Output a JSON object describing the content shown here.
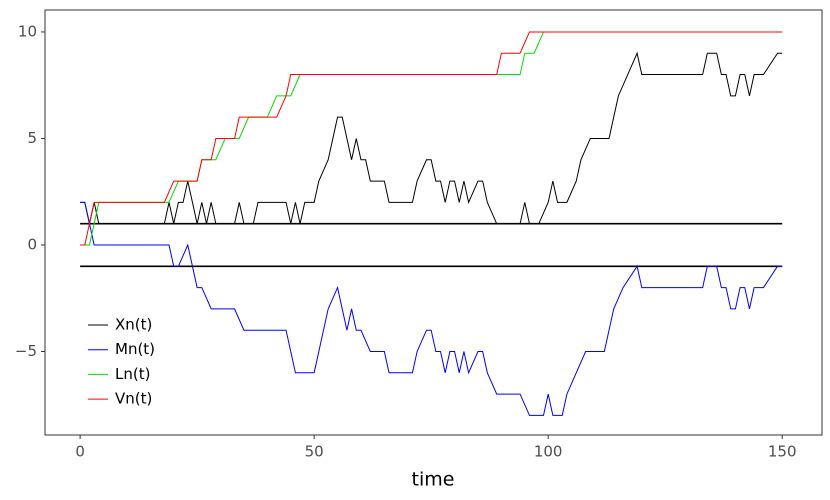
{
  "chart_data": {
    "type": "line",
    "xlabel": "time",
    "xlim": [
      -7.5,
      158.5
    ],
    "ylim": [
      -8.92,
      11.03
    ],
    "xticks": [
      0,
      50,
      100,
      150
    ],
    "yticks": [
      {
        "value": -5,
        "label": "−5"
      },
      0,
      5,
      10
    ],
    "grid": false,
    "legend": "bottom-left",
    "hlines": [
      1,
      -1
    ],
    "hline_color": "#000000",
    "series": [
      {
        "name": "Xn(t)",
        "color": "#000000",
        "x": [
          0,
          1,
          2,
          3,
          4,
          18,
          19,
          20,
          21,
          22,
          23,
          24,
          25,
          26,
          27,
          28,
          29,
          33,
          34,
          35,
          37,
          38,
          44,
          45,
          46,
          47,
          48,
          50,
          51,
          53,
          54,
          55,
          56,
          57,
          58,
          59,
          60,
          61,
          62,
          65,
          66,
          71,
          72,
          74,
          75,
          76,
          77,
          78,
          79,
          80,
          81,
          82,
          83,
          85,
          86,
          87,
          89,
          94,
          95,
          96,
          98,
          100,
          101,
          102,
          104,
          106,
          107,
          109,
          113,
          114,
          115,
          117,
          119,
          120,
          133,
          134,
          136,
          137,
          138,
          139,
          140,
          141,
          142,
          143,
          144,
          146,
          149,
          150
        ],
        "values": [
          2,
          2,
          1,
          2,
          1,
          1,
          2,
          1,
          2,
          2,
          3,
          2,
          1,
          2,
          1,
          2,
          1,
          1,
          2,
          1,
          1,
          2,
          2,
          1,
          2,
          1,
          2,
          2,
          3,
          4,
          5,
          6,
          6,
          5,
          4,
          5,
          4,
          4,
          3,
          3,
          2,
          2,
          3,
          4,
          4,
          3,
          3,
          2,
          3,
          3,
          2,
          3,
          2,
          3,
          3,
          2,
          1,
          1,
          2,
          1,
          1,
          2,
          3,
          2,
          2,
          3,
          4,
          5,
          5,
          6,
          7,
          8,
          9,
          8,
          8,
          9,
          9,
          8,
          8,
          7,
          7,
          8,
          8,
          7,
          8,
          8,
          9,
          9
        ]
      },
      {
        "name": "Mn(t)",
        "color": "#0000ff",
        "x": [
          0,
          1,
          2,
          3,
          19,
          20,
          21,
          23,
          24,
          25,
          26,
          28,
          33,
          35,
          44,
          45,
          46,
          50,
          51,
          52,
          53,
          55,
          56,
          57,
          58,
          59,
          60,
          62,
          65,
          66,
          71,
          72,
          74,
          75,
          76,
          77,
          78,
          79,
          80,
          81,
          82,
          83,
          85,
          86,
          87,
          89,
          94,
          96,
          99,
          100,
          101,
          103,
          104,
          106,
          108,
          112,
          113,
          114,
          116,
          119,
          120,
          133,
          134,
          136,
          137,
          138,
          139,
          140,
          141,
          142,
          143,
          144,
          146,
          149,
          150
        ],
        "values": [
          2,
          2,
          1,
          0,
          0,
          -1,
          -1,
          0,
          -1,
          -2,
          -2,
          -3,
          -3,
          -4,
          -4,
          -5,
          -6,
          -6,
          -5,
          -4,
          -3,
          -2,
          -3,
          -4,
          -3,
          -4,
          -4,
          -5,
          -5,
          -6,
          -6,
          -5,
          -4,
          -4,
          -5,
          -5,
          -6,
          -5,
          -5,
          -6,
          -5,
          -6,
          -5,
          -5,
          -6,
          -7,
          -7,
          -8,
          -8,
          -7,
          -8,
          -8,
          -7,
          -6,
          -5,
          -5,
          -4,
          -3,
          -2,
          -1,
          -2,
          -2,
          -1,
          -1,
          -2,
          -2,
          -3,
          -3,
          -2,
          -2,
          -3,
          -2,
          -2,
          -1,
          -1
        ]
      },
      {
        "name": "Ln(t)",
        "color": "#00dd00",
        "x": [
          0,
          2,
          4,
          19,
          21,
          25,
          26,
          29,
          31,
          34,
          36,
          40,
          42,
          44,
          45,
          47,
          94,
          95,
          97,
          99,
          150
        ],
        "values": [
          0,
          0,
          2,
          2,
          3,
          3,
          4,
          4,
          5,
          5,
          6,
          6,
          7,
          7,
          7,
          8,
          8,
          9,
          9,
          10,
          10
        ]
      },
      {
        "name": "Vn(t)",
        "color": "#ff0000",
        "x": [
          0,
          1,
          2,
          3,
          18,
          20,
          25,
          26,
          28,
          29,
          33,
          34,
          42,
          44,
          45,
          89,
          90,
          94,
          96,
          150
        ],
        "values": [
          0,
          0,
          1,
          2,
          2,
          3,
          3,
          4,
          4,
          5,
          5,
          6,
          6,
          7,
          8,
          8,
          9,
          9,
          10,
          10
        ]
      }
    ]
  }
}
